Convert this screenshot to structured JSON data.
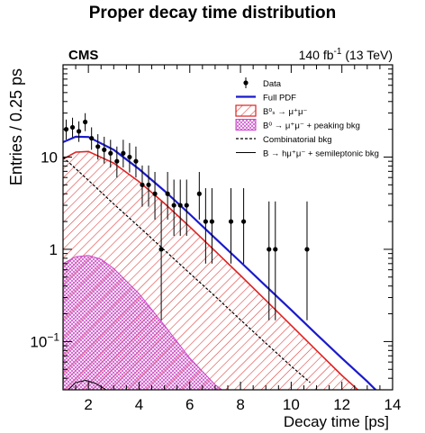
{
  "chart_data": {
    "type": "scatter",
    "title": "Proper decay time distribution",
    "experiment": "CMS",
    "lumi_label": "140 fb",
    "lumi_superscript": "-1",
    "energy_label": "(13 TeV)",
    "xlabel": "Decay time [ps]",
    "ylabel": "Entries / 0.25 ps",
    "xlim": [
      1,
      14
    ],
    "ylim": [
      0.03,
      100
    ],
    "yscale": "log",
    "x_ticks": [
      2,
      4,
      6,
      8,
      10,
      12,
      14
    ],
    "x_tick_labels": [
      "2",
      "4",
      "6",
      "8",
      "10",
      "12",
      "14"
    ],
    "y_tick_labels": [
      {
        "value": 10,
        "base": "10",
        "exp": ""
      },
      {
        "value": 1,
        "base": "1",
        "exp": ""
      },
      {
        "value": 0.1,
        "base": "10",
        "exp": "−1"
      }
    ],
    "legend_position": "top-right",
    "legend": [
      {
        "key": "data",
        "label": "Data",
        "style": "marker"
      },
      {
        "key": "full",
        "label": "Full PDF",
        "style": "line",
        "color": "#1a1acc"
      },
      {
        "key": "bs",
        "label": "B⁰ₛ → μ⁺μ⁻",
        "style": "hatch-red",
        "color": "#dd2222"
      },
      {
        "key": "b0",
        "label": "B⁰ → μ⁺μ⁻ + peaking bkg",
        "style": "hatch-magenta",
        "color": "#cc44cc"
      },
      {
        "key": "comb",
        "label": "Combinatorial bkg",
        "style": "dashed",
        "color": "#000000"
      },
      {
        "key": "semi",
        "label": "B → hμ⁺μ⁻ + semileptonic bkg",
        "style": "thin-line",
        "color": "#000000"
      }
    ],
    "series": [
      {
        "name": "Data",
        "points": [
          {
            "x": 1.125,
            "y": 20,
            "ylo": 15.5,
            "yhi": 25.5
          },
          {
            "x": 1.375,
            "y": 21,
            "ylo": 16.4,
            "yhi": 26.7
          },
          {
            "x": 1.625,
            "y": 19,
            "ylo": 14.6,
            "yhi": 24.4
          },
          {
            "x": 1.875,
            "y": 24,
            "ylo": 19.1,
            "yhi": 29.9
          },
          {
            "x": 2.125,
            "y": 16,
            "ylo": 12,
            "yhi": 21
          },
          {
            "x": 2.375,
            "y": 13,
            "ylo": 9.4,
            "yhi": 17.7
          },
          {
            "x": 2.625,
            "y": 12,
            "ylo": 8.5,
            "yhi": 16.6
          },
          {
            "x": 2.875,
            "y": 11,
            "ylo": 7.7,
            "yhi": 15.4
          },
          {
            "x": 3.125,
            "y": 9,
            "ylo": 6,
            "yhi": 13
          },
          {
            "x": 3.375,
            "y": 11,
            "ylo": 7.7,
            "yhi": 15.4
          },
          {
            "x": 3.625,
            "y": 10,
            "ylo": 6.8,
            "yhi": 14.2
          },
          {
            "x": 3.875,
            "y": 9,
            "ylo": 6,
            "yhi": 13
          },
          {
            "x": 4.125,
            "y": 5,
            "ylo": 2.9,
            "yhi": 8.1
          },
          {
            "x": 4.375,
            "y": 5,
            "ylo": 2.9,
            "yhi": 8.1
          },
          {
            "x": 4.625,
            "y": 4,
            "ylo": 2.1,
            "yhi": 6.9
          },
          {
            "x": 4.875,
            "y": 1,
            "ylo": 0.17,
            "yhi": 3.3
          },
          {
            "x": 5.125,
            "y": 4,
            "ylo": 2.1,
            "yhi": 6.9
          },
          {
            "x": 5.375,
            "y": 3,
            "ylo": 1.4,
            "yhi": 5.7
          },
          {
            "x": 5.625,
            "y": 3,
            "ylo": 1.4,
            "yhi": 5.7
          },
          {
            "x": 5.875,
            "y": 3,
            "ylo": 1.4,
            "yhi": 5.7
          },
          {
            "x": 6.375,
            "y": 4,
            "ylo": 2.1,
            "yhi": 6.9
          },
          {
            "x": 6.625,
            "y": 2,
            "ylo": 0.7,
            "yhi": 4.6
          },
          {
            "x": 6.875,
            "y": 2,
            "ylo": 0.7,
            "yhi": 4.6
          },
          {
            "x": 7.625,
            "y": 2,
            "ylo": 0.7,
            "yhi": 4.6
          },
          {
            "x": 8.125,
            "y": 2,
            "ylo": 0.7,
            "yhi": 4.6
          },
          {
            "x": 9.125,
            "y": 1,
            "ylo": 0.17,
            "yhi": 3.3
          },
          {
            "x": 9.375,
            "y": 1,
            "ylo": 0.17,
            "yhi": 3.3
          },
          {
            "x": 10.625,
            "y": 1,
            "ylo": 0.17,
            "yhi": 3.3
          }
        ]
      },
      {
        "name": "Full PDF",
        "x": [
          1.0,
          1.5,
          2.0,
          3.0,
          4.0,
          5.0,
          6.0,
          7.0,
          8.0,
          9.0,
          10.0,
          11.0,
          12.0,
          13.0,
          13.5
        ],
        "y": [
          14.5,
          16.6,
          16.5,
          12.0,
          7.4,
          4.3,
          2.4,
          1.32,
          0.73,
          0.4,
          0.22,
          0.12,
          0.066,
          0.037,
          0.027
        ]
      },
      {
        "name": "B⁰ₛ → μ⁺μ⁻",
        "x": [
          1.0,
          1.5,
          2.0,
          3.0,
          4.0,
          5.0,
          6.0,
          7.0,
          8.0,
          9.0,
          10.0,
          11.0,
          12.0,
          12.75
        ],
        "y": [
          9.5,
          11.3,
          11.5,
          8.6,
          5.4,
          3.15,
          1.75,
          0.96,
          0.52,
          0.28,
          0.15,
          0.08,
          0.043,
          0.028
        ]
      },
      {
        "name": "B⁰ → μ⁺μ⁻ + peaking bkg",
        "x": [
          1.0,
          1.5,
          2.0,
          2.5,
          3.0,
          4.0,
          5.0,
          6.0,
          7.0,
          7.5
        ],
        "y": [
          0.7,
          0.83,
          0.86,
          0.78,
          0.62,
          0.33,
          0.15,
          0.066,
          0.034,
          0.027
        ]
      },
      {
        "name": "Combinatorial bkg",
        "x": [
          1.0,
          2.0,
          3.0,
          4.0,
          5.0,
          6.0,
          7.0,
          8.0,
          9.0,
          10.0,
          10.75
        ],
        "y": [
          10.0,
          5.6,
          3.1,
          1.75,
          0.98,
          0.55,
          0.31,
          0.172,
          0.096,
          0.054,
          0.036
        ]
      },
      {
        "name": "B → hμ⁺μ⁻ + semileptonic bkg",
        "x": [
          1.1,
          1.5,
          1.9,
          2.3,
          2.7,
          3.0
        ],
        "y": [
          0.028,
          0.036,
          0.038,
          0.035,
          0.03,
          0.027
        ]
      }
    ]
  }
}
